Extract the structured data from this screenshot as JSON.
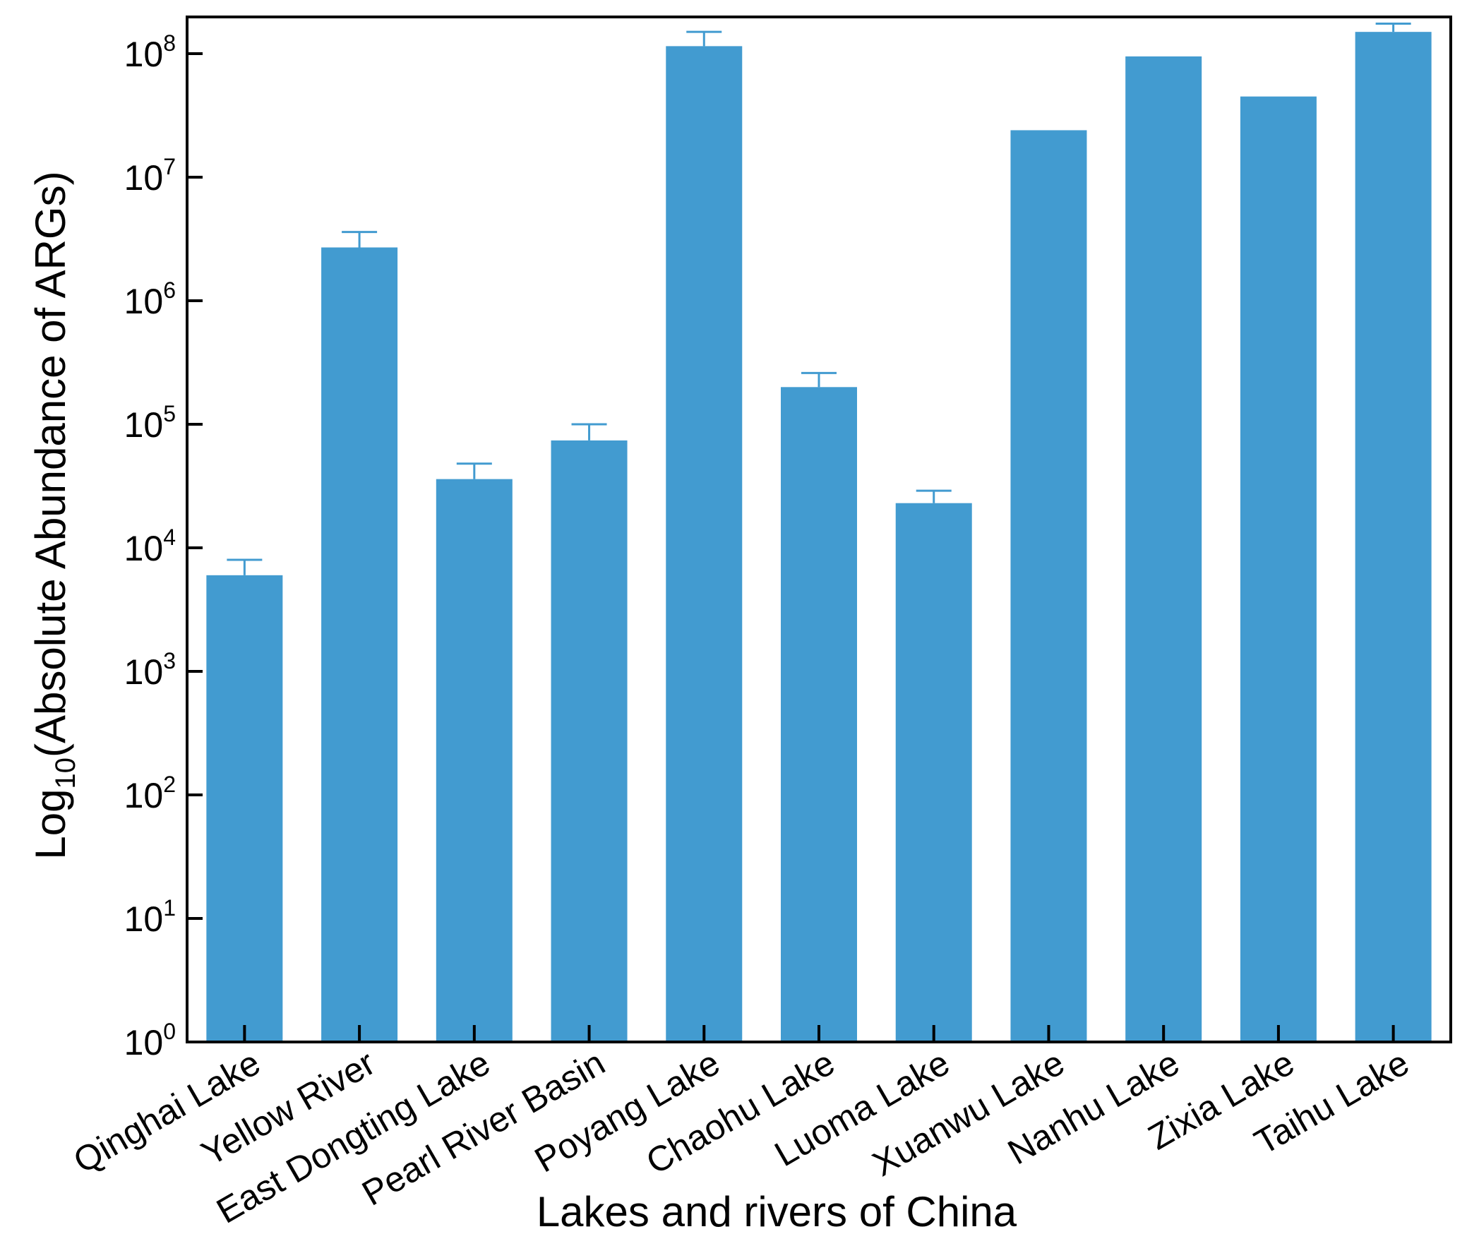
{
  "chart_data": {
    "type": "bar",
    "title": "",
    "xlabel": "Lakes and rivers of China",
    "ylabel": {
      "prefix": "Log",
      "subscript": "10",
      "rest": "(Absolute Abundance of ARGs)"
    },
    "y_scale": "log",
    "ylim": [
      1,
      100000000
    ],
    "y_ticks": [
      {
        "base": "10",
        "exp": "0"
      },
      {
        "base": "10",
        "exp": "1"
      },
      {
        "base": "10",
        "exp": "2"
      },
      {
        "base": "10",
        "exp": "3"
      },
      {
        "base": "10",
        "exp": "4"
      },
      {
        "base": "10",
        "exp": "5"
      },
      {
        "base": "10",
        "exp": "6"
      },
      {
        "base": "10",
        "exp": "7"
      },
      {
        "base": "10",
        "exp": "8"
      }
    ],
    "categories": [
      "Qinghai Lake",
      "Yellow River",
      "East Dongting Lake",
      "Pearl River Basin",
      "Poyang Lake",
      "Chaohu Lake",
      "Luoma Lake",
      "Xuanwu Lake",
      "Nanhu Lake",
      "Zixia Lake",
      "Taihu Lake"
    ],
    "values": [
      6000,
      2700000,
      36000,
      74000,
      115000000,
      200000,
      23000,
      24000000,
      95000000,
      45000000,
      150000000
    ],
    "error_upper": [
      8000,
      3600000,
      48000,
      100000,
      150000000,
      260000,
      29000,
      null,
      null,
      null,
      175000000
    ],
    "colors": {
      "bar": "#429bd0",
      "axis": "#000000"
    },
    "grid": false,
    "legend": "none"
  }
}
